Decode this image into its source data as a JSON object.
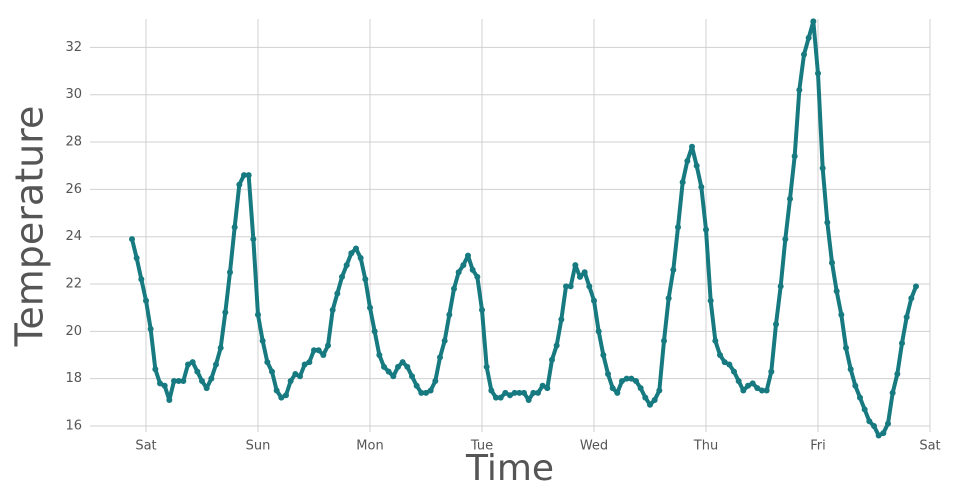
{
  "chart_data": {
    "type": "line",
    "xlabel": "Time",
    "ylabel": "Temperature",
    "x": [
      -3,
      -2,
      -1,
      0,
      1,
      2,
      3,
      4,
      5,
      6,
      7,
      8,
      9,
      10,
      11,
      12,
      13,
      14,
      15,
      16,
      17,
      18,
      19,
      20,
      21,
      22,
      23,
      24,
      25,
      26,
      27,
      28,
      29,
      30,
      31,
      32,
      33,
      34,
      35,
      36,
      37,
      38,
      39,
      40,
      41,
      42,
      43,
      44,
      45,
      46,
      47,
      48,
      49,
      50,
      51,
      52,
      53,
      54,
      55,
      56,
      57,
      58,
      59,
      60,
      61,
      62,
      63,
      64,
      65,
      66,
      67,
      68,
      69,
      70,
      71,
      72,
      73,
      74,
      75,
      76,
      77,
      78,
      79,
      80,
      81,
      82,
      83,
      84,
      85,
      86,
      87,
      88,
      89,
      90,
      91,
      92,
      93,
      94,
      95,
      96,
      97,
      98,
      99,
      100,
      101,
      102,
      103,
      104,
      105,
      106,
      107,
      108,
      109,
      110,
      111,
      112,
      113,
      114,
      115,
      116,
      117,
      118,
      119,
      120,
      121,
      122,
      123,
      124,
      125,
      126,
      127,
      128,
      129,
      130,
      131,
      132,
      133,
      134,
      135,
      136,
      137,
      138,
      139,
      140,
      141,
      142,
      143,
      144,
      145,
      146,
      147,
      148,
      149,
      150,
      151,
      152,
      153,
      154,
      155,
      156,
      157,
      158,
      159,
      160,
      161,
      162,
      163,
      164,
      165
    ],
    "series": [
      {
        "color": "#167a80",
        "values": [
          23.9,
          23.1,
          22.2,
          21.3,
          20.1,
          18.4,
          17.8,
          17.7,
          17.1,
          17.9,
          17.9,
          17.9,
          18.6,
          18.7,
          18.3,
          17.9,
          17.6,
          18.0,
          18.6,
          19.3,
          20.8,
          22.5,
          24.4,
          26.2,
          26.6,
          26.6,
          23.9,
          20.7,
          19.6,
          18.7,
          18.3,
          17.5,
          17.2,
          17.3,
          17.9,
          18.2,
          18.1,
          18.6,
          18.7,
          19.2,
          19.2,
          19.0,
          19.4,
          20.9,
          21.6,
          22.3,
          22.8,
          23.3,
          23.5,
          23.1,
          22.2,
          21.0,
          20.0,
          19.0,
          18.5,
          18.3,
          18.1,
          18.5,
          18.7,
          18.5,
          18.1,
          17.7,
          17.4,
          17.4,
          17.5,
          17.9,
          18.9,
          19.6,
          20.7,
          21.8,
          22.5,
          22.8,
          23.2,
          22.6,
          22.3,
          20.9,
          18.5,
          17.5,
          17.2,
          17.2,
          17.4,
          17.3,
          17.4,
          17.4,
          17.4,
          17.1,
          17.4,
          17.4,
          17.7,
          17.6,
          18.8,
          19.4,
          20.5,
          21.9,
          21.9,
          22.8,
          22.3,
          22.5,
          21.9,
          21.3,
          20.0,
          19.0,
          18.2,
          17.6,
          17.4,
          17.9,
          18.0,
          18.0,
          17.9,
          17.6,
          17.2,
          16.9,
          17.1,
          17.5,
          19.6,
          21.4,
          22.6,
          24.4,
          26.3,
          27.2,
          27.8,
          27.0,
          26.1,
          24.3,
          21.3,
          19.6,
          19.0,
          18.7,
          18.6,
          18.3,
          17.9,
          17.5,
          17.7,
          17.8,
          17.6,
          17.5,
          17.5,
          18.3,
          20.3,
          21.9,
          23.9,
          25.6,
          27.4,
          30.2,
          31.7,
          32.4,
          33.1,
          30.9,
          26.9,
          24.6,
          22.9,
          21.7,
          20.7,
          19.3,
          18.4,
          17.7,
          17.2,
          16.7,
          16.2,
          16.0,
          15.6,
          15.7,
          16.1,
          17.4,
          18.2,
          19.5,
          20.6,
          21.4,
          21.9
        ]
      }
    ],
    "xlim": [
      -12,
      168
    ],
    "xticks": [
      {
        "value": 0,
        "label": "Sat"
      },
      {
        "value": 24,
        "label": "Sun"
      },
      {
        "value": 48,
        "label": "Mon"
      },
      {
        "value": 72,
        "label": "Tue"
      },
      {
        "value": 96,
        "label": "Wed"
      },
      {
        "value": 120,
        "label": "Thu"
      },
      {
        "value": 144,
        "label": "Fri"
      },
      {
        "value": 168,
        "label": "Sat"
      }
    ],
    "ylim": [
      16,
      33.2
    ],
    "yticks": [
      16,
      18,
      20,
      22,
      24,
      26,
      28,
      30,
      32
    ],
    "grid": true
  }
}
